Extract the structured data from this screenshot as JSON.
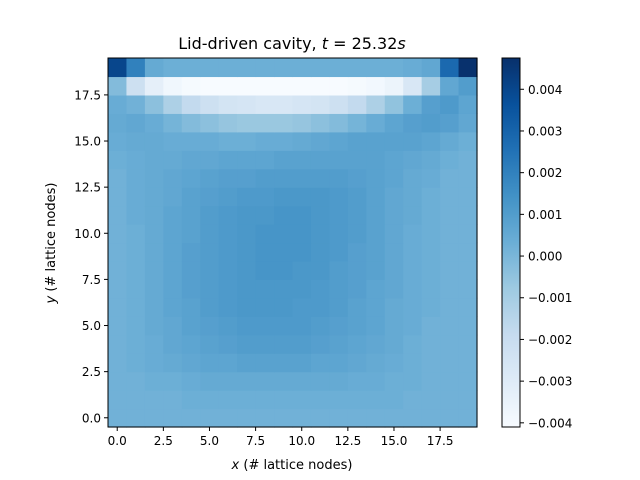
{
  "chart_data": {
    "type": "heatmap",
    "title_prefix": "Lid-driven cavity, ",
    "title_var": "t",
    "title_eq": " = 25.32",
    "title_unit": "s",
    "xlabel_var": "x",
    "xlabel_text": " (# lattice nodes)",
    "ylabel_var": "y",
    "ylabel_text": " (# lattice nodes)",
    "grid_size": 20,
    "x_ticks": [
      "0.0",
      "2.5",
      "5.0",
      "7.5",
      "10.0",
      "12.5",
      "15.0",
      "17.5"
    ],
    "y_ticks": [
      "0.0",
      "2.5",
      "5.0",
      "7.5",
      "10.0",
      "12.5",
      "15.0",
      "17.5"
    ],
    "x_tick_values": [
      0,
      2.5,
      5,
      7.5,
      10,
      12.5,
      15,
      17.5
    ],
    "y_tick_values": [
      0,
      2.5,
      5,
      7.5,
      10,
      12.5,
      15,
      17.5
    ],
    "colormap": "Blues",
    "vmin": -0.0041,
    "vmax": 0.00475,
    "colorbar_ticks": [
      "0.004",
      "0.003",
      "0.002",
      "0.001",
      "0.000",
      "−0.001",
      "−0.002",
      "−0.003",
      "−0.004"
    ],
    "colorbar_tick_values": [
      0.004,
      0.003,
      0.002,
      0.001,
      0.0,
      -0.001,
      -0.002,
      -0.003,
      -0.004
    ],
    "grid": false,
    "values": [
      [
        0.0002,
        0.0002,
        0.0002,
        0.0002,
        0.0002,
        0.0002,
        0.0002,
        0.0002,
        0.0002,
        0.0002,
        0.0002,
        0.0002,
        0.0002,
        0.0002,
        0.0002,
        0.0002,
        0.0002,
        0.0002,
        0.0002,
        0.0002
      ],
      [
        0.0002,
        0.0002,
        0.0002,
        0.0002,
        0.0003,
        0.0003,
        0.0003,
        0.0003,
        0.0003,
        0.0003,
        0.0003,
        0.0003,
        0.0003,
        0.0003,
        0.0003,
        0.0003,
        0.0002,
        0.0002,
        0.0002,
        0.0002
      ],
      [
        0.0002,
        0.0002,
        0.0003,
        0.0003,
        0.0004,
        0.0005,
        0.0005,
        0.0005,
        0.0005,
        0.0005,
        0.0005,
        0.0005,
        0.0005,
        0.0004,
        0.0004,
        0.0003,
        0.0003,
        0.0002,
        0.0002,
        0.0002
      ],
      [
        0.0002,
        0.0003,
        0.0004,
        0.0005,
        0.0006,
        0.0007,
        0.0007,
        0.0008,
        0.0008,
        0.0008,
        0.0008,
        0.0007,
        0.0007,
        0.0006,
        0.0005,
        0.0004,
        0.0003,
        0.0002,
        0.0002,
        0.0002
      ],
      [
        0.0002,
        0.0003,
        0.0004,
        0.0006,
        0.0007,
        0.0008,
        0.0009,
        0.001,
        0.001,
        0.001,
        0.001,
        0.0009,
        0.0008,
        0.0007,
        0.0006,
        0.0005,
        0.0003,
        0.0002,
        0.0002,
        0.0002
      ],
      [
        0.0002,
        0.0003,
        0.0005,
        0.0006,
        0.0008,
        0.0009,
        0.001,
        0.0011,
        0.0011,
        0.0011,
        0.0011,
        0.001,
        0.0009,
        0.0008,
        0.0007,
        0.0005,
        0.0004,
        0.0002,
        0.0002,
        0.0002
      ],
      [
        0.0002,
        0.0003,
        0.0005,
        0.0007,
        0.0008,
        0.001,
        0.0011,
        0.0012,
        0.0012,
        0.0012,
        0.0011,
        0.0011,
        0.001,
        0.0008,
        0.0007,
        0.0005,
        0.0004,
        0.0003,
        0.0002,
        0.0002
      ],
      [
        0.0002,
        0.0003,
        0.0005,
        0.0007,
        0.0009,
        0.001,
        0.0011,
        0.0012,
        0.0012,
        0.0012,
        0.0012,
        0.0011,
        0.001,
        0.0009,
        0.0007,
        0.0006,
        0.0004,
        0.0003,
        0.0002,
        0.0002
      ],
      [
        0.0002,
        0.0003,
        0.0005,
        0.0007,
        0.0009,
        0.001,
        0.0011,
        0.0012,
        0.0013,
        0.0013,
        0.0012,
        0.0012,
        0.001,
        0.0009,
        0.0008,
        0.0006,
        0.0004,
        0.0003,
        0.0002,
        0.0002
      ],
      [
        0.0002,
        0.0003,
        0.0005,
        0.0007,
        0.0009,
        0.001,
        0.0011,
        0.0012,
        0.0013,
        0.0013,
        0.0013,
        0.0012,
        0.0011,
        0.0009,
        0.0008,
        0.0006,
        0.0004,
        0.0003,
        0.0002,
        0.0002
      ],
      [
        0.0002,
        0.0003,
        0.0005,
        0.0007,
        0.0008,
        0.001,
        0.0011,
        0.0012,
        0.0013,
        0.0013,
        0.0013,
        0.0012,
        0.0011,
        0.001,
        0.0008,
        0.0006,
        0.0004,
        0.0003,
        0.0002,
        0.0002
      ],
      [
        0.0002,
        0.0004,
        0.0005,
        0.0007,
        0.0008,
        0.001,
        0.0011,
        0.0012,
        0.0012,
        0.0013,
        0.0013,
        0.0012,
        0.0011,
        0.001,
        0.0008,
        0.0006,
        0.0005,
        0.0003,
        0.0002,
        0.0002
      ],
      [
        0.0002,
        0.0004,
        0.0005,
        0.0006,
        0.0008,
        0.0009,
        0.001,
        0.0011,
        0.0011,
        0.0012,
        0.0012,
        0.0012,
        0.0011,
        0.001,
        0.0008,
        0.0006,
        0.0005,
        0.0003,
        0.0002,
        0.0002
      ],
      [
        0.0002,
        0.0004,
        0.0005,
        0.0006,
        0.0007,
        0.0008,
        0.0009,
        0.0009,
        0.001,
        0.001,
        0.001,
        0.001,
        0.001,
        0.0009,
        0.0008,
        0.0007,
        0.0005,
        0.0004,
        0.0002,
        0.0002
      ],
      [
        0.0003,
        0.0004,
        0.0005,
        0.0005,
        0.0006,
        0.0006,
        0.0007,
        0.0007,
        0.0007,
        0.0008,
        0.0008,
        0.0008,
        0.0008,
        0.0008,
        0.0008,
        0.0007,
        0.0006,
        0.0005,
        0.0003,
        0.0002
      ],
      [
        0.0004,
        0.0005,
        0.0005,
        0.0004,
        0.0004,
        0.0004,
        0.0003,
        0.0003,
        0.0004,
        0.0004,
        0.0005,
        0.0006,
        0.0007,
        0.0008,
        0.0008,
        0.0008,
        0.0008,
        0.0007,
        0.0005,
        0.0003
      ],
      [
        0.0005,
        0.0006,
        0.0004,
        0.0001,
        -0.0002,
        -0.0004,
        -0.0006,
        -0.0007,
        -0.0007,
        -0.0007,
        -0.0006,
        -0.0004,
        -0.0002,
        0.0001,
        0.0004,
        0.0007,
        0.0009,
        0.001,
        0.0009,
        0.0006
      ],
      [
        0.0004,
        0.0002,
        -0.0004,
        -0.0012,
        -0.0018,
        -0.0022,
        -0.0025,
        -0.0026,
        -0.0027,
        -0.0027,
        -0.0026,
        -0.0025,
        -0.0022,
        -0.0018,
        -0.0012,
        -0.0005,
        0.0003,
        0.0009,
        0.0011,
        0.0007
      ],
      [
        -0.0002,
        -0.0022,
        -0.0033,
        -0.0038,
        -0.004,
        -0.0041,
        -0.0041,
        -0.0041,
        -0.0041,
        -0.0041,
        -0.0041,
        -0.0041,
        -0.0041,
        -0.004,
        -0.0039,
        -0.0036,
        -0.0027,
        -0.001,
        0.0006,
        0.001
      ],
      [
        0.004,
        0.002,
        0.0005,
        0.0003,
        0.0003,
        0.0003,
        0.0003,
        0.0003,
        0.0003,
        0.0003,
        0.0003,
        0.0003,
        0.0003,
        0.0003,
        0.0003,
        0.0003,
        0.0004,
        0.0006,
        0.0028,
        0.0047
      ]
    ]
  }
}
